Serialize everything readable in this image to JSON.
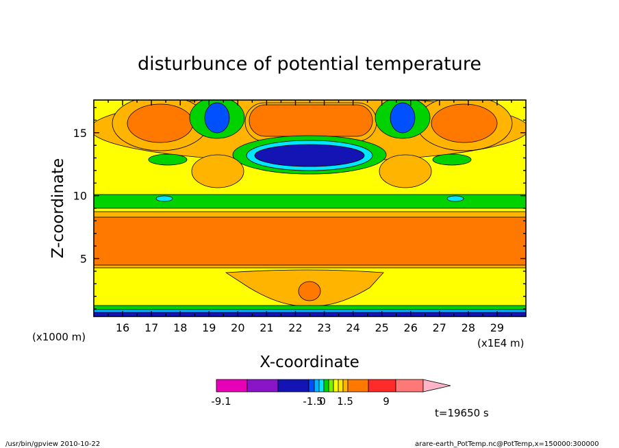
{
  "chart_data": {
    "type": "heatmap",
    "title": "disturbunce of potential temperature",
    "xlabel": "X-coordinate",
    "ylabel": "Z-coordinate",
    "x_unit": "(x1E4 m)",
    "y_unit": "(x1000 m)",
    "xlim": [
      15.0,
      30.0
    ],
    "ylim": [
      0.4,
      17.6
    ],
    "x_ticks": [
      "16",
      "17",
      "18",
      "19",
      "20",
      "21",
      "22",
      "23",
      "24",
      "25",
      "26",
      "27",
      "28",
      "29"
    ],
    "y_ticks": [
      "5",
      "10",
      "15"
    ],
    "x_tick_values": [
      16,
      17,
      18,
      19,
      20,
      21,
      22,
      23,
      24,
      25,
      26,
      27,
      28,
      29
    ],
    "y_tick_values": [
      5,
      10,
      15
    ],
    "colorbar": {
      "labels": [
        {
          "text": "-9.1",
          "value": -9.1
        },
        {
          "text": "-1.5",
          "value": -1.5
        },
        {
          "text": "0",
          "value": 0
        },
        {
          "text": "1.5",
          "value": 1.5
        },
        {
          "text": "9",
          "value": 9
        }
      ],
      "colors": [
        "#e800b8",
        "#8a14c8",
        "#1414b4",
        "#0050ff",
        "#00b4ff",
        "#00e6ff",
        "#00d200",
        "#78f000",
        "#ffff00",
        "#ffe600",
        "#ffb400",
        "#ff7800",
        "#ff2a2a",
        "#ff7878",
        "#ffb4c8"
      ]
    },
    "annotation": "t=19650 s"
  },
  "footer": {
    "left": "/usr/bin/gpview  2010-10-22",
    "right": "arare-earth_PotTemp.nc@PotTemp,x=150000:300000"
  }
}
